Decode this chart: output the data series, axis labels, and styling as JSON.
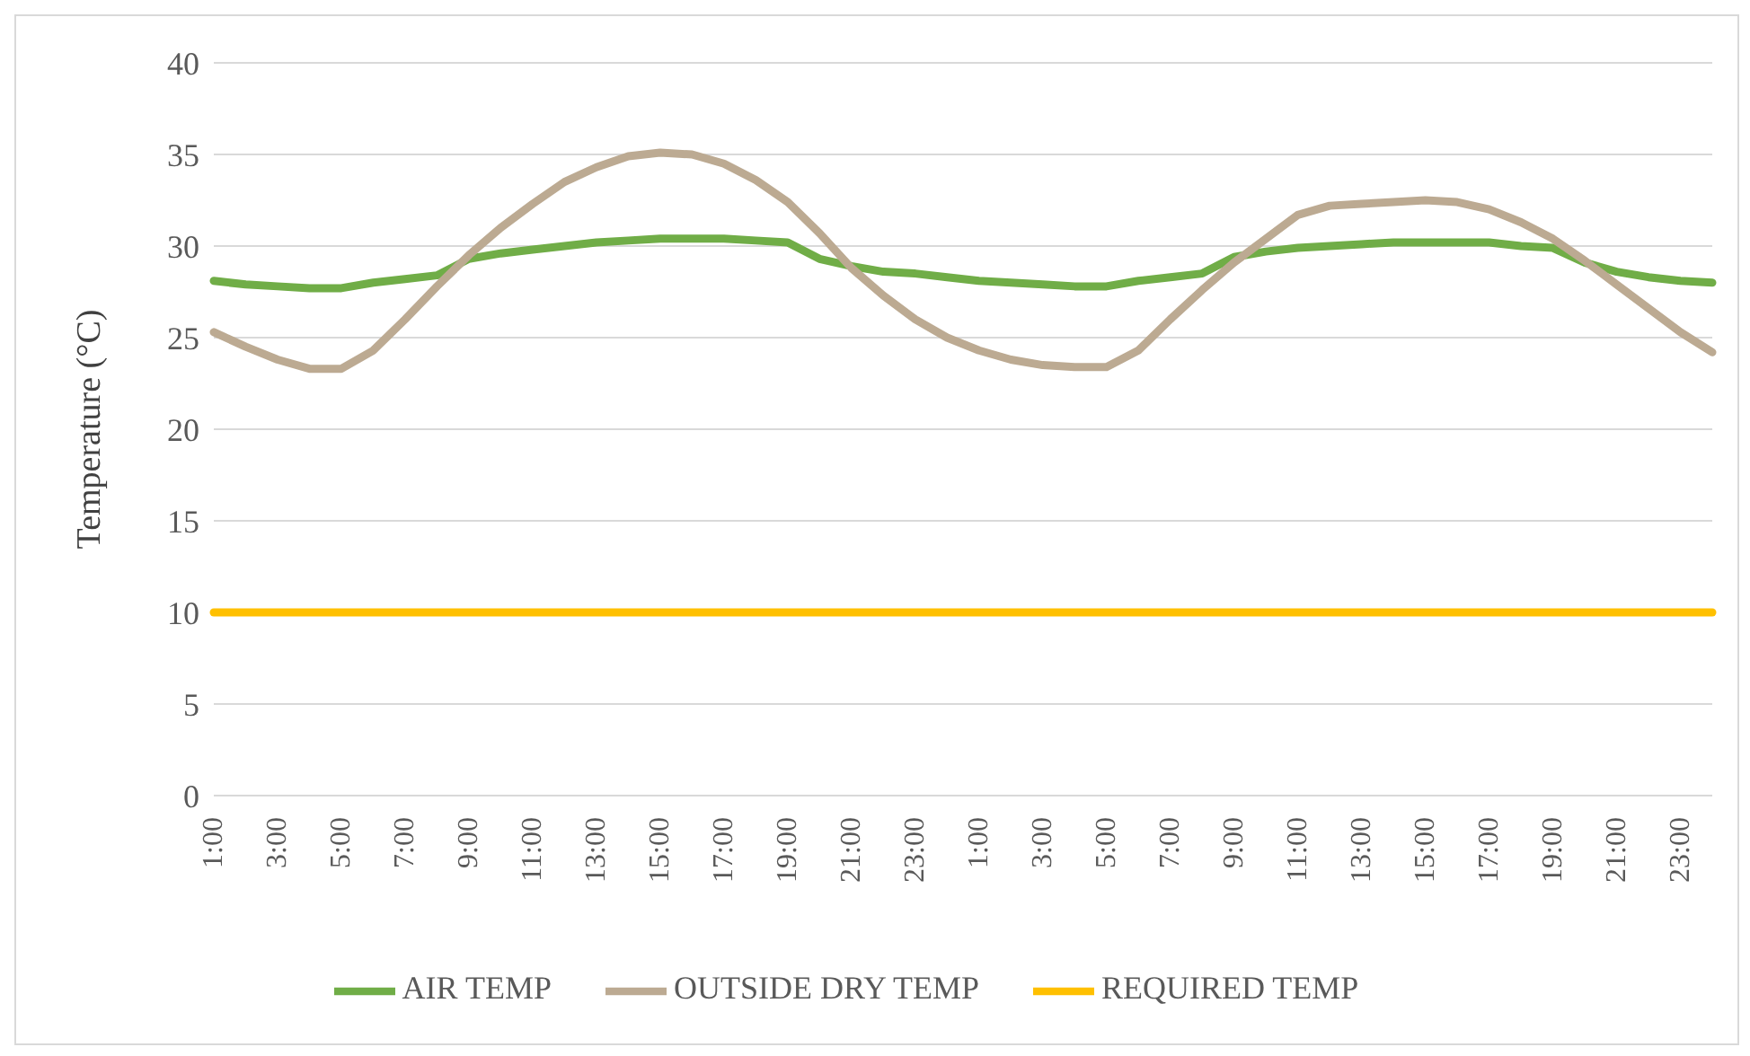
{
  "chart_data": {
    "type": "line",
    "ylabel": "Temperature (°C)",
    "categories": [
      "1:00",
      null,
      "3:00",
      null,
      "5:00",
      null,
      "7:00",
      null,
      "9:00",
      null,
      "11:00",
      null,
      "13:00",
      null,
      "15:00",
      null,
      "17:00",
      null,
      "19:00",
      null,
      "21:00",
      null,
      "23:00",
      null,
      "1:00",
      null,
      "3:00",
      null,
      "5:00",
      null,
      "7:00",
      null,
      "9:00",
      null,
      "11:00",
      null,
      "13:00",
      null,
      "15:00",
      null,
      "17:00",
      null,
      "19:00",
      null,
      "21:00",
      null,
      "23:00",
      null
    ],
    "series": [
      {
        "name": "AIR TEMP",
        "color": "#70ad47",
        "values": [
          28.1,
          27.9,
          27.8,
          27.7,
          27.7,
          28.0,
          28.2,
          28.4,
          29.3,
          29.6,
          29.8,
          30.0,
          30.2,
          30.3,
          30.4,
          30.4,
          30.4,
          30.3,
          30.2,
          29.3,
          28.9,
          28.6,
          28.5,
          28.3,
          28.1,
          28.0,
          27.9,
          27.8,
          27.8,
          28.1,
          28.3,
          28.5,
          29.4,
          29.7,
          29.9,
          30.0,
          30.1,
          30.2,
          30.2,
          30.2,
          30.2,
          30.0,
          29.9,
          29.1,
          28.6,
          28.3,
          28.1,
          28.0
        ]
      },
      {
        "name": "OUTSIDE DRY TEMP",
        "color": "#bcaa92",
        "values": [
          25.3,
          24.5,
          23.8,
          23.3,
          23.3,
          24.3,
          26.0,
          27.8,
          29.5,
          31.0,
          32.3,
          33.5,
          34.3,
          34.9,
          35.1,
          35.0,
          34.5,
          33.6,
          32.4,
          30.7,
          28.8,
          27.3,
          26.0,
          25.0,
          24.3,
          23.8,
          23.5,
          23.4,
          23.4,
          24.3,
          26.0,
          27.6,
          29.1,
          30.4,
          31.7,
          32.2,
          32.3,
          32.4,
          32.5,
          32.4,
          32.0,
          31.3,
          30.4,
          29.2,
          27.9,
          26.6,
          25.3,
          24.2
        ]
      },
      {
        "name": "REQUIRED TEMP",
        "color": "#ffc000",
        "values": [
          10,
          10,
          10,
          10,
          10,
          10,
          10,
          10,
          10,
          10,
          10,
          10,
          10,
          10,
          10,
          10,
          10,
          10,
          10,
          10,
          10,
          10,
          10,
          10,
          10,
          10,
          10,
          10,
          10,
          10,
          10,
          10,
          10,
          10,
          10,
          10,
          10,
          10,
          10,
          10,
          10,
          10,
          10,
          10,
          10,
          10,
          10,
          10
        ]
      }
    ],
    "ylim": [
      0,
      40
    ],
    "yticks": [
      0,
      5,
      10,
      15,
      20,
      25,
      30,
      35,
      40
    ],
    "grid": "y",
    "legend": "bottom",
    "marker": "none",
    "line_style": "solid"
  }
}
